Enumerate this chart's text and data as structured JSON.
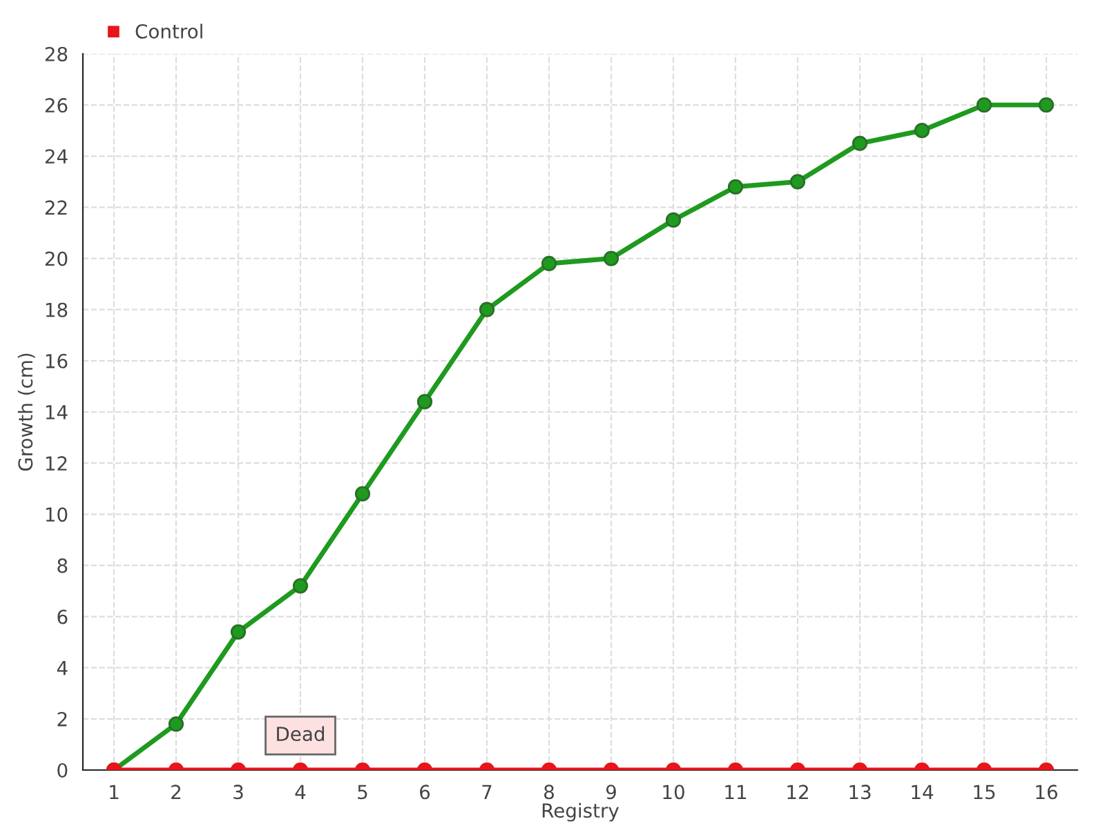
{
  "chart_data": {
    "type": "line",
    "xlabel": "Registry",
    "ylabel": "Growth (cm)",
    "categories": [
      "1",
      "2",
      "3",
      "4",
      "5",
      "6",
      "7",
      "8",
      "9",
      "10",
      "11",
      "12",
      "13",
      "14",
      "15",
      "16"
    ],
    "series": [
      {
        "color": "#1e9a1e",
        "values": [
          0,
          1.8,
          5.4,
          7.2,
          10.8,
          14.4,
          18,
          19.8,
          20,
          21.5,
          22.8,
          23,
          24.5,
          25,
          26,
          26
        ]
      },
      {
        "name": "Control",
        "color": "#e8151b",
        "values": [
          0,
          0,
          0,
          0,
          0,
          0,
          0,
          0,
          0,
          0,
          0,
          0,
          0,
          0,
          0,
          0
        ]
      }
    ],
    "ylim": [
      0,
      28
    ],
    "yticks": [
      0,
      2,
      4,
      6,
      8,
      10,
      12,
      14,
      16,
      18,
      20,
      22,
      24,
      26,
      28
    ],
    "grid": true,
    "legend": "top left",
    "marker": "circle",
    "line_style": "solid",
    "annotations": [
      {
        "text": "Dead",
        "x": "4",
        "y": 0
      }
    ]
  }
}
